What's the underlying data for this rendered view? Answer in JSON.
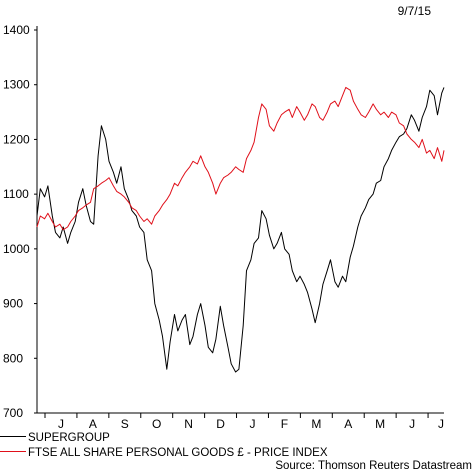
{
  "chart_data": {
    "type": "line",
    "date_label": "9/7/15",
    "y_ticks": [
      700,
      800,
      900,
      1000,
      1100,
      1200,
      1300,
      1400
    ],
    "ylim": [
      700,
      1400
    ],
    "x_ticks": [
      "J",
      "A",
      "S",
      "O",
      "N",
      "D",
      "J",
      "F",
      "M",
      "A",
      "M",
      "J",
      "J"
    ],
    "x_range": [
      "2014-07-01",
      "2015-07-09"
    ],
    "grid": false,
    "series": [
      {
        "name": "SUPERGROUP",
        "color": "#000000",
        "points": [
          [
            "2014-07-01",
            1060
          ],
          [
            "2014-07-04",
            1110
          ],
          [
            "2014-07-08",
            1095
          ],
          [
            "2014-07-11",
            1115
          ],
          [
            "2014-07-15",
            1060
          ],
          [
            "2014-07-18",
            1030
          ],
          [
            "2014-07-22",
            1020
          ],
          [
            "2014-07-25",
            1040
          ],
          [
            "2014-07-29",
            1010
          ],
          [
            "2014-08-01",
            1030
          ],
          [
            "2014-08-05",
            1050
          ],
          [
            "2014-08-08",
            1085
          ],
          [
            "2014-08-12",
            1110
          ],
          [
            "2014-08-15",
            1080
          ],
          [
            "2014-08-19",
            1050
          ],
          [
            "2014-08-22",
            1045
          ],
          [
            "2014-08-26",
            1170
          ],
          [
            "2014-08-29",
            1225
          ],
          [
            "2014-09-02",
            1200
          ],
          [
            "2014-09-05",
            1160
          ],
          [
            "2014-09-09",
            1140
          ],
          [
            "2014-09-12",
            1120
          ],
          [
            "2014-09-16",
            1150
          ],
          [
            "2014-09-19",
            1110
          ],
          [
            "2014-09-23",
            1090
          ],
          [
            "2014-09-26",
            1070
          ],
          [
            "2014-09-30",
            1060
          ],
          [
            "2014-10-03",
            1040
          ],
          [
            "2014-10-07",
            1030
          ],
          [
            "2014-10-10",
            980
          ],
          [
            "2014-10-14",
            960
          ],
          [
            "2014-10-17",
            900
          ],
          [
            "2014-10-21",
            870
          ],
          [
            "2014-10-24",
            840
          ],
          [
            "2014-10-28",
            780
          ],
          [
            "2014-10-31",
            830
          ],
          [
            "2014-11-04",
            880
          ],
          [
            "2014-11-07",
            850
          ],
          [
            "2014-11-11",
            870
          ],
          [
            "2014-11-14",
            880
          ],
          [
            "2014-11-18",
            825
          ],
          [
            "2014-11-21",
            840
          ],
          [
            "2014-11-25",
            880
          ],
          [
            "2014-11-28",
            900
          ],
          [
            "2014-12-02",
            860
          ],
          [
            "2014-12-05",
            820
          ],
          [
            "2014-12-09",
            810
          ],
          [
            "2014-12-12",
            835
          ],
          [
            "2014-12-16",
            895
          ],
          [
            "2014-12-19",
            860
          ],
          [
            "2014-12-23",
            820
          ],
          [
            "2014-12-26",
            790
          ],
          [
            "2014-12-30",
            775
          ],
          [
            "2015-01-02",
            780
          ],
          [
            "2015-01-06",
            860
          ],
          [
            "2015-01-09",
            960
          ],
          [
            "2015-01-13",
            980
          ],
          [
            "2015-01-16",
            1010
          ],
          [
            "2015-01-20",
            1020
          ],
          [
            "2015-01-23",
            1070
          ],
          [
            "2015-01-27",
            1055
          ],
          [
            "2015-01-30",
            1025
          ],
          [
            "2015-02-03",
            1000
          ],
          [
            "2015-02-06",
            1010
          ],
          [
            "2015-02-10",
            1030
          ],
          [
            "2015-02-13",
            1000
          ],
          [
            "2015-02-17",
            990
          ],
          [
            "2015-02-20",
            960
          ],
          [
            "2015-02-24",
            940
          ],
          [
            "2015-02-27",
            950
          ],
          [
            "2015-03-03",
            935
          ],
          [
            "2015-03-06",
            920
          ],
          [
            "2015-03-10",
            890
          ],
          [
            "2015-03-13",
            865
          ],
          [
            "2015-03-17",
            900
          ],
          [
            "2015-03-20",
            935
          ],
          [
            "2015-03-24",
            960
          ],
          [
            "2015-03-27",
            980
          ],
          [
            "2015-03-31",
            940
          ],
          [
            "2015-04-03",
            930
          ],
          [
            "2015-04-07",
            950
          ],
          [
            "2015-04-10",
            940
          ],
          [
            "2015-04-14",
            985
          ],
          [
            "2015-04-17",
            1005
          ],
          [
            "2015-04-21",
            1040
          ],
          [
            "2015-04-24",
            1060
          ],
          [
            "2015-04-28",
            1075
          ],
          [
            "2015-05-01",
            1090
          ],
          [
            "2015-05-05",
            1100
          ],
          [
            "2015-05-08",
            1120
          ],
          [
            "2015-05-12",
            1125
          ],
          [
            "2015-05-15",
            1150
          ],
          [
            "2015-05-19",
            1165
          ],
          [
            "2015-05-22",
            1180
          ],
          [
            "2015-05-26",
            1195
          ],
          [
            "2015-05-29",
            1205
          ],
          [
            "2015-06-02",
            1210
          ],
          [
            "2015-06-05",
            1220
          ],
          [
            "2015-06-09",
            1245
          ],
          [
            "2015-06-12",
            1235
          ],
          [
            "2015-06-16",
            1215
          ],
          [
            "2015-06-19",
            1240
          ],
          [
            "2015-06-23",
            1260
          ],
          [
            "2015-06-26",
            1290
          ],
          [
            "2015-06-30",
            1280
          ],
          [
            "2015-07-03",
            1245
          ],
          [
            "2015-07-07",
            1285
          ],
          [
            "2015-07-09",
            1295
          ]
        ]
      },
      {
        "name": "FTSE ALL SHARE PERSONAL GOODS £ - PRICE INDEX",
        "color": "#e0101a",
        "points": [
          [
            "2014-07-01",
            1040
          ],
          [
            "2014-07-04",
            1060
          ],
          [
            "2014-07-08",
            1055
          ],
          [
            "2014-07-11",
            1065
          ],
          [
            "2014-07-15",
            1050
          ],
          [
            "2014-07-18",
            1040
          ],
          [
            "2014-07-22",
            1045
          ],
          [
            "2014-07-25",
            1035
          ],
          [
            "2014-07-29",
            1040
          ],
          [
            "2014-08-01",
            1050
          ],
          [
            "2014-08-05",
            1060
          ],
          [
            "2014-08-08",
            1070
          ],
          [
            "2014-08-12",
            1075
          ],
          [
            "2014-08-15",
            1080
          ],
          [
            "2014-08-19",
            1085
          ],
          [
            "2014-08-22",
            1110
          ],
          [
            "2014-08-26",
            1115
          ],
          [
            "2014-08-29",
            1120
          ],
          [
            "2014-09-02",
            1125
          ],
          [
            "2014-09-05",
            1130
          ],
          [
            "2014-09-09",
            1115
          ],
          [
            "2014-09-12",
            1105
          ],
          [
            "2014-09-16",
            1100
          ],
          [
            "2014-09-19",
            1095
          ],
          [
            "2014-09-23",
            1085
          ],
          [
            "2014-09-26",
            1075
          ],
          [
            "2014-09-30",
            1070
          ],
          [
            "2014-10-03",
            1060
          ],
          [
            "2014-10-07",
            1050
          ],
          [
            "2014-10-10",
            1055
          ],
          [
            "2014-10-14",
            1045
          ],
          [
            "2014-10-17",
            1060
          ],
          [
            "2014-10-21",
            1070
          ],
          [
            "2014-10-24",
            1080
          ],
          [
            "2014-10-28",
            1090
          ],
          [
            "2014-10-31",
            1100
          ],
          [
            "2014-11-04",
            1120
          ],
          [
            "2014-11-07",
            1115
          ],
          [
            "2014-11-11",
            1130
          ],
          [
            "2014-11-14",
            1140
          ],
          [
            "2014-11-18",
            1150
          ],
          [
            "2014-11-21",
            1160
          ],
          [
            "2014-11-25",
            1155
          ],
          [
            "2014-11-28",
            1170
          ],
          [
            "2014-12-02",
            1150
          ],
          [
            "2014-12-05",
            1140
          ],
          [
            "2014-12-09",
            1120
          ],
          [
            "2014-12-12",
            1100
          ],
          [
            "2014-12-16",
            1120
          ],
          [
            "2014-12-19",
            1130
          ],
          [
            "2014-12-23",
            1135
          ],
          [
            "2014-12-26",
            1140
          ],
          [
            "2014-12-30",
            1150
          ],
          [
            "2015-01-02",
            1145
          ],
          [
            "2015-01-06",
            1140
          ],
          [
            "2015-01-09",
            1165
          ],
          [
            "2015-01-13",
            1180
          ],
          [
            "2015-01-16",
            1195
          ],
          [
            "2015-01-20",
            1240
          ],
          [
            "2015-01-23",
            1265
          ],
          [
            "2015-01-27",
            1255
          ],
          [
            "2015-01-30",
            1225
          ],
          [
            "2015-02-03",
            1215
          ],
          [
            "2015-02-06",
            1230
          ],
          [
            "2015-02-10",
            1245
          ],
          [
            "2015-02-13",
            1250
          ],
          [
            "2015-02-17",
            1255
          ],
          [
            "2015-02-20",
            1240
          ],
          [
            "2015-02-24",
            1260
          ],
          [
            "2015-02-27",
            1250
          ],
          [
            "2015-03-03",
            1235
          ],
          [
            "2015-03-06",
            1245
          ],
          [
            "2015-03-10",
            1265
          ],
          [
            "2015-03-13",
            1260
          ],
          [
            "2015-03-17",
            1240
          ],
          [
            "2015-03-20",
            1235
          ],
          [
            "2015-03-24",
            1250
          ],
          [
            "2015-03-27",
            1265
          ],
          [
            "2015-03-31",
            1270
          ],
          [
            "2015-04-03",
            1260
          ],
          [
            "2015-04-07",
            1280
          ],
          [
            "2015-04-10",
            1295
          ],
          [
            "2015-04-14",
            1290
          ],
          [
            "2015-04-17",
            1270
          ],
          [
            "2015-04-21",
            1255
          ],
          [
            "2015-04-24",
            1245
          ],
          [
            "2015-04-28",
            1240
          ],
          [
            "2015-05-01",
            1250
          ],
          [
            "2015-05-05",
            1265
          ],
          [
            "2015-05-08",
            1255
          ],
          [
            "2015-05-12",
            1245
          ],
          [
            "2015-05-15",
            1250
          ],
          [
            "2015-05-19",
            1240
          ],
          [
            "2015-05-22",
            1250
          ],
          [
            "2015-05-26",
            1245
          ],
          [
            "2015-05-29",
            1230
          ],
          [
            "2015-06-02",
            1225
          ],
          [
            "2015-06-05",
            1210
          ],
          [
            "2015-06-09",
            1200
          ],
          [
            "2015-06-12",
            1195
          ],
          [
            "2015-06-16",
            1185
          ],
          [
            "2015-06-19",
            1200
          ],
          [
            "2015-06-23",
            1175
          ],
          [
            "2015-06-26",
            1180
          ],
          [
            "2015-06-30",
            1165
          ],
          [
            "2015-07-03",
            1185
          ],
          [
            "2015-07-07",
            1160
          ],
          [
            "2015-07-09",
            1180
          ]
        ]
      }
    ],
    "source": "Source: Thomson Reuters Datastream"
  }
}
